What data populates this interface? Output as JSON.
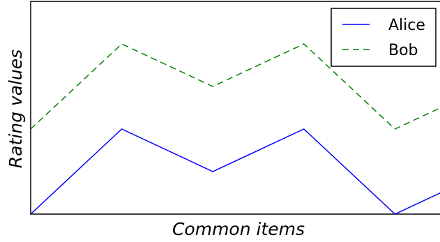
{
  "chart_data": {
    "type": "line",
    "title": "",
    "xlabel": "Common items",
    "ylabel": "Rating values",
    "x": [
      0,
      1,
      2,
      3,
      4,
      5
    ],
    "xlim": [
      0,
      4.9
    ],
    "ylim": [
      0,
      5
    ],
    "show_ticks": false,
    "grid": false,
    "legend_position": "top-right",
    "series": [
      {
        "name": "Alice",
        "values": [
          0,
          2,
          1,
          2,
          0,
          1
        ],
        "color": "#0000ff",
        "linestyle": "solid"
      },
      {
        "name": "Bob",
        "values": [
          2,
          4,
          3,
          4,
          2,
          3
        ],
        "color": "#008000",
        "linestyle": "dashed"
      }
    ]
  }
}
